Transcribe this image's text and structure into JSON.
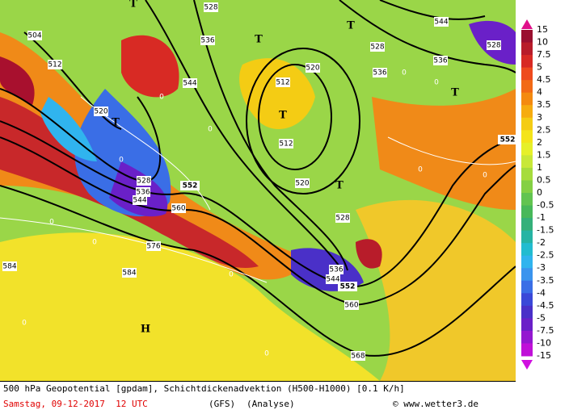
{
  "map": {
    "contour_labels": [
      "504",
      "512",
      "520",
      "528",
      "536",
      "544",
      "528",
      "536",
      "544",
      "552",
      "560",
      "576",
      "584",
      "584",
      "520",
      "512",
      "512",
      "520",
      "528",
      "536",
      "544",
      "552",
      "560",
      "568",
      "528",
      "536",
      "544",
      "536",
      "528",
      "552"
    ],
    "zero_labels": [
      "0",
      "0",
      "0",
      "0",
      "0",
      "0",
      "0",
      "0",
      "0",
      "0",
      "0",
      "0"
    ],
    "markers": [
      "T",
      "T",
      "T",
      "T",
      "T",
      "T",
      "T",
      "H"
    ]
  },
  "colorbar": {
    "ticks": [
      15,
      10,
      7.5,
      5,
      4.5,
      4,
      3.5,
      3,
      2.5,
      2,
      1.5,
      1,
      0.5,
      0,
      -0.5,
      -1,
      -1.5,
      -2,
      -2.5,
      -3,
      -3.5,
      -4,
      -4.5,
      -5,
      -7.5,
      -10,
      -15
    ],
    "colors": [
      "#9a1030",
      "#b81c2a",
      "#d82a24",
      "#ee4a1e",
      "#f26a16",
      "#f48a10",
      "#f6ac10",
      "#f4cc14",
      "#f4e41a",
      "#e6f02a",
      "#c8e838",
      "#a6dc3c",
      "#84d044",
      "#62c450",
      "#48b85a",
      "#34b07a",
      "#26b4a4",
      "#22bcd0",
      "#30b4ee",
      "#3a94ee",
      "#3a6ee6",
      "#3a48d8",
      "#4a30c8",
      "#6a20c8",
      "#9418d0",
      "#c010d8"
    ]
  },
  "footer": {
    "line1": "500 hPa Geopotential [gpdam], Schichtdickenadvektion (H500-H1000) [0.1 K/h]",
    "date": "Samstag, 09-12-2017  12 UTC",
    "model": "(GFS)",
    "run": "(Analyse)",
    "credit": "© www.wetter3.de"
  }
}
